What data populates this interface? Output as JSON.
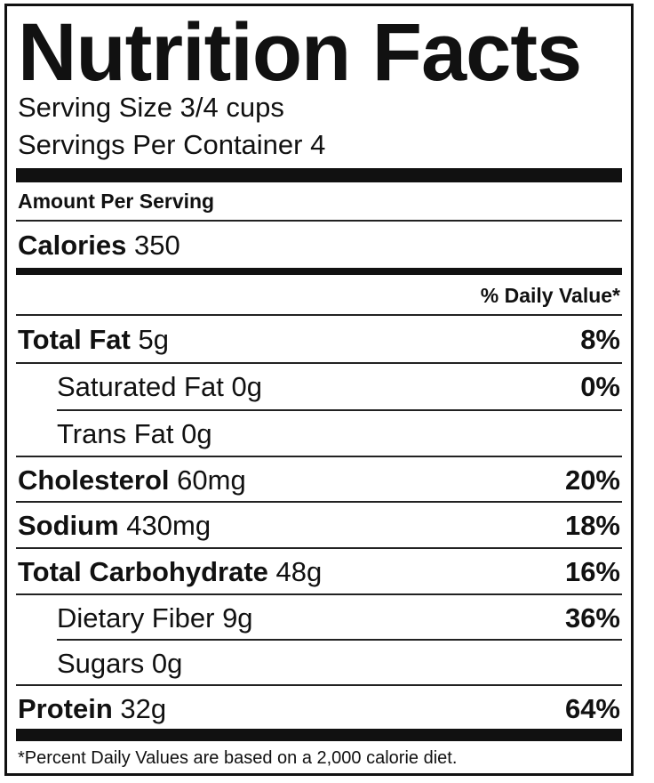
{
  "title": "Nutrition Facts",
  "serving_size": "Serving Size 3/4 cups",
  "servings_per_container": "Servings Per Container 4",
  "amount_per_serving": "Amount Per Serving",
  "calories": {
    "label": "Calories",
    "value": "350"
  },
  "daily_value_header": "% Daily Value*",
  "nutrients": [
    {
      "label": "Total Fat",
      "amount": "5g",
      "dv": "8%"
    },
    {
      "label": "Saturated Fat",
      "amount": "0g",
      "dv": "0%"
    },
    {
      "label": "Trans Fat",
      "amount": "0g",
      "dv": ""
    },
    {
      "label": "Cholesterol",
      "amount": "60mg",
      "dv": "20%"
    },
    {
      "label": "Sodium",
      "amount": "430mg",
      "dv": "18%"
    },
    {
      "label": "Total Carbohydrate",
      "amount": "48g",
      "dv": "16%"
    },
    {
      "label": "Dietary Fiber",
      "amount": "9g",
      "dv": "36%"
    },
    {
      "label": "Sugars",
      "amount": "0g",
      "dv": ""
    },
    {
      "label": "Protein",
      "amount": "32g",
      "dv": "64%"
    }
  ],
  "footnote": "*Percent Daily Values are based on a 2,000 calorie diet."
}
